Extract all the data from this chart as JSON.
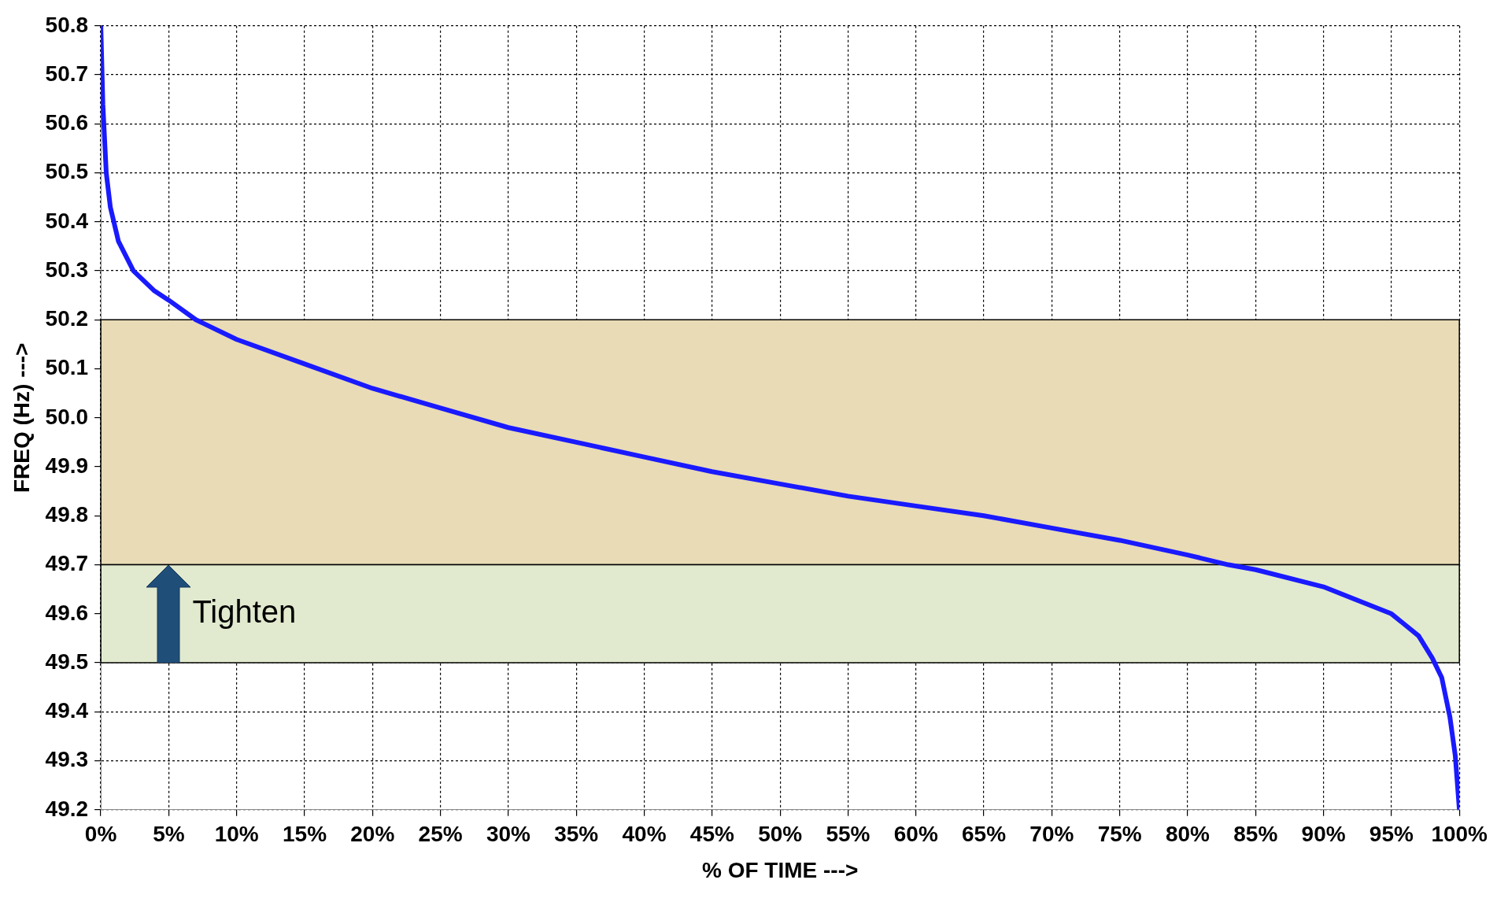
{
  "chart_data": {
    "type": "line",
    "xlabel": "% OF TIME --->",
    "ylabel": "FREQ (Hz) --->",
    "x": [
      0,
      0.15,
      0.4,
      0.7,
      1.3,
      2.4,
      3.9,
      5,
      7,
      10,
      15,
      20,
      25,
      30,
      35,
      40,
      45,
      50,
      55,
      60,
      65,
      70,
      75,
      80,
      83,
      85,
      90,
      95,
      97,
      98,
      98.7,
      99.3,
      99.7,
      100
    ],
    "series": [
      {
        "color": "#1a1aff",
        "values": [
          50.8,
          50.64,
          50.5,
          50.43,
          50.36,
          50.3,
          50.26,
          50.24,
          50.2,
          50.16,
          50.11,
          50.06,
          50.02,
          49.98,
          49.95,
          49.92,
          49.89,
          49.865,
          49.84,
          49.82,
          49.8,
          49.775,
          49.75,
          49.72,
          49.7,
          49.69,
          49.655,
          49.6,
          49.555,
          49.51,
          49.47,
          49.39,
          49.31,
          49.2
        ]
      }
    ],
    "xlim": [
      0,
      100
    ],
    "xticks": [
      {
        "value": 0,
        "label": "0%"
      },
      {
        "value": 5,
        "label": "5%"
      },
      {
        "value": 10,
        "label": "10%"
      },
      {
        "value": 15,
        "label": "15%"
      },
      {
        "value": 20,
        "label": "20%"
      },
      {
        "value": 25,
        "label": "25%"
      },
      {
        "value": 30,
        "label": "30%"
      },
      {
        "value": 35,
        "label": "35%"
      },
      {
        "value": 40,
        "label": "40%"
      },
      {
        "value": 45,
        "label": "45%"
      },
      {
        "value": 50,
        "label": "50%"
      },
      {
        "value": 55,
        "label": "55%"
      },
      {
        "value": 60,
        "label": "60%"
      },
      {
        "value": 65,
        "label": "65%"
      },
      {
        "value": 70,
        "label": "70%"
      },
      {
        "value": 75,
        "label": "75%"
      },
      {
        "value": 80,
        "label": "80%"
      },
      {
        "value": 85,
        "label": "85%"
      },
      {
        "value": 90,
        "label": "90%"
      },
      {
        "value": 95,
        "label": "95%"
      },
      {
        "value": 100,
        "label": "100%"
      }
    ],
    "ylim": [
      49.2,
      50.8
    ],
    "yticks": [
      49.2,
      49.3,
      49.4,
      49.5,
      49.6,
      49.7,
      49.8,
      49.9,
      {
        "value": 50,
        "label": "50.0"
      },
      50.1,
      50.2,
      50.3,
      50.4,
      50.5,
      50.6,
      50.7,
      50.8
    ],
    "bands": [
      {
        "axis": "y",
        "from": 49.7,
        "to": 50.2,
        "color": "#e8dbb6"
      },
      {
        "axis": "y",
        "from": 49.5,
        "to": 49.7,
        "color": "#e1eace"
      }
    ],
    "annotations": [
      "Tighten"
    ],
    "grid": true,
    "legend": false,
    "marker": "none",
    "line_style": "solid"
  }
}
